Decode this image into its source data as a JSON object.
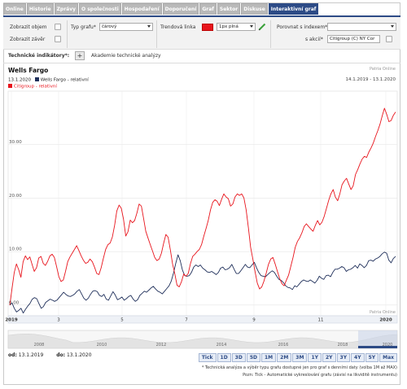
{
  "tabs": [
    {
      "label": "Online"
    },
    {
      "label": "Historie"
    },
    {
      "label": "Zprávy"
    },
    {
      "label": "O společnosti"
    },
    {
      "label": "Hospodaření"
    },
    {
      "label": "Doporučení"
    },
    {
      "label": "Graf"
    },
    {
      "label": "Sektor"
    },
    {
      "label": "Diskuse"
    },
    {
      "label": "Interaktivní graf"
    }
  ],
  "controls": {
    "show_volume": "Zobrazit objem",
    "show_close": "Zobrazit závěr",
    "chart_type_label": "Typ grafu*",
    "chart_type_value": "čárový",
    "trend_line_label": "Trendová linka",
    "trend_line_color": "#e8141c",
    "trend_line_width": "1px plná",
    "compare_index_label": "Porovnat s indexem*",
    "compare_index_value": "",
    "compare_stock_label": "s akcií*",
    "compare_stock_value": "Citigroup (C) NY Cor"
  },
  "indicators": {
    "label": "Technické indikátory*:",
    "plus": "+",
    "academy": "Akademie technické analýzy"
  },
  "chart_header": {
    "title": "Wells Fargo",
    "source": "Patria Online",
    "date_label": "13.1.2020",
    "range": "14.1.2019 - 13.1.2020"
  },
  "chart_data": {
    "type": "line",
    "title": "Wells Fargo",
    "y_ticks": [
      "30.00",
      "20.00",
      "10.00",
      "0.00"
    ],
    "ylim": [
      -2,
      40
    ],
    "x_ticks": [
      "2019",
      "3",
      "5",
      "7",
      "9",
      "11",
      "2020"
    ],
    "grid": true,
    "series": [
      {
        "name": "Wells Fargo - relativní",
        "color": "#1f2f5a",
        "values": [
          0.0,
          0.4,
          -0.6,
          -1.3,
          -1.0,
          -0.6,
          -1.5,
          -0.8,
          -0.2,
          0.3,
          1.1,
          1.4,
          1.2,
          0.3,
          -0.6,
          -0.3,
          0.5,
          0.8,
          1.1,
          0.9,
          0.7,
          0.9,
          1.4,
          1.9,
          2.4,
          2.0,
          1.7,
          1.6,
          1.8,
          2.1,
          2.6,
          2.9,
          2.1,
          1.3,
          0.9,
          1.3,
          2.0,
          2.6,
          2.7,
          2.5,
          1.8,
          1.6,
          2.0,
          1.1,
          0.9,
          1.7,
          2.5,
          1.9,
          1.0,
          1.2,
          1.5,
          0.9,
          1.2,
          1.6,
          1.8,
          1.1,
          0.7,
          1.0,
          1.8,
          2.2,
          2.6,
          2.4,
          2.8,
          3.2,
          3.5,
          3.0,
          2.6,
          2.4,
          2.1,
          2.6,
          3.1,
          3.6,
          4.5,
          6.0,
          7.8,
          9.4,
          8.3,
          6.5,
          5.5,
          5.4,
          5.5,
          6.1,
          7.1,
          7.5,
          7.2,
          7.5,
          6.9,
          6.6,
          6.2,
          6.1,
          6.3,
          6.0,
          5.7,
          6.1,
          6.9,
          7.1,
          6.6,
          6.7,
          7.0,
          7.6,
          6.7,
          5.9,
          5.9,
          6.4,
          7.0,
          7.6,
          7.1,
          7.0,
          7.5,
          8.0,
          7.0,
          6.1,
          5.5,
          5.4,
          5.3,
          5.7,
          6.1,
          6.4,
          6.1,
          5.4,
          4.8,
          4.6,
          4.2,
          3.6,
          3.3,
          3.2,
          2.9,
          3.6,
          3.4,
          3.9,
          4.4,
          4.7,
          4.5,
          4.4,
          4.7,
          4.4,
          4.1,
          4.6,
          5.4,
          5.0,
          4.8,
          5.5,
          5.6,
          5.3,
          6.1,
          6.7,
          6.7,
          6.9,
          7.2,
          7.0,
          6.3,
          6.6,
          6.7,
          7.0,
          7.4,
          6.9,
          7.7,
          7.4,
          7.0,
          7.4,
          8.3,
          8.4,
          8.2,
          8.6,
          8.8,
          9.1,
          9.6,
          9.9,
          9.7,
          8.4,
          7.9,
          8.7,
          9.1
        ]
      },
      {
        "name": "Citigroup - relativní",
        "color": "#e8141c",
        "values": [
          0.0,
          3.0,
          6.1,
          7.7,
          6.6,
          5.2,
          8.1,
          9.2,
          8.5,
          9.0,
          7.6,
          6.3,
          7.0,
          8.8,
          9.1,
          7.8,
          7.4,
          8.2,
          9.2,
          9.5,
          8.9,
          7.2,
          5.3,
          4.4,
          4.7,
          6.3,
          8.1,
          9.0,
          9.7,
          10.4,
          11.1,
          10.2,
          9.2,
          8.4,
          7.8,
          8.0,
          8.6,
          8.1,
          7.1,
          5.9,
          5.7,
          7.0,
          8.8,
          10.4,
          11.3,
          11.6,
          12.7,
          14.9,
          17.6,
          18.7,
          18.1,
          16.1,
          12.9,
          13.7,
          15.9,
          15.4,
          15.8,
          17.2,
          18.9,
          18.5,
          16.2,
          13.8,
          12.5,
          11.3,
          10.1,
          8.9,
          8.3,
          8.6,
          9.7,
          11.6,
          13.2,
          12.7,
          10.3,
          7.7,
          5.8,
          3.7,
          3.4,
          4.4,
          5.8,
          5.4,
          5.9,
          7.7,
          9.1,
          9.5,
          10.0,
          10.4,
          11.3,
          12.9,
          14.3,
          15.8,
          17.8,
          19.2,
          19.7,
          19.4,
          18.6,
          19.8,
          20.8,
          20.2,
          19.9,
          18.5,
          18.9,
          20.2,
          20.8,
          20.5,
          20.8,
          20.0,
          17.8,
          14.4,
          10.8,
          8.6,
          6.2,
          4.1,
          3.0,
          3.4,
          4.5,
          6.0,
          7.6,
          8.6,
          8.9,
          7.7,
          6.3,
          5.0,
          4.0,
          3.6,
          4.6,
          5.6,
          7.2,
          8.9,
          10.8,
          11.9,
          12.6,
          13.5,
          14.7,
          15.2,
          14.7,
          14.2,
          13.8,
          14.9,
          15.8,
          15.0,
          15.5,
          16.6,
          18.1,
          19.6,
          20.8,
          21.6,
          20.2,
          19.5,
          20.8,
          22.5,
          23.2,
          23.7,
          22.6,
          21.6,
          22.3,
          24.4,
          25.3,
          26.4,
          27.3,
          27.8,
          27.6,
          28.6,
          29.4,
          30.3,
          31.5,
          32.6,
          33.8,
          35.4,
          36.8,
          35.7,
          34.3,
          34.5,
          35.5,
          36.1
        ]
      }
    ]
  },
  "navigator": {
    "years": [
      "2008",
      "2010",
      "2012",
      "2014",
      "2016",
      "2018",
      "2020"
    ]
  },
  "range_inputs": {
    "from_label": "od:",
    "from_value": "13.1.2019",
    "to_label": "do:",
    "to_value": "13.1.2020"
  },
  "zoom_buttons": [
    {
      "label": "Tick"
    },
    {
      "label": "1D"
    },
    {
      "label": "3D"
    },
    {
      "label": "5D"
    },
    {
      "label": "1M"
    },
    {
      "label": "2M"
    },
    {
      "label": "3M"
    },
    {
      "label": "1Y"
    },
    {
      "label": "2Y"
    },
    {
      "label": "3Y"
    },
    {
      "label": "4Y"
    },
    {
      "label": "5Y"
    },
    {
      "label": "Max"
    }
  ],
  "notes": {
    "line1": "* Technická analýza a výběr typu grafu dostupné jen pro graf s denními daty (volba 1M až MAX)",
    "line2": "Pozn: Tick - Automatické vykreslování grafu (závisí na likviditě instrumentu)"
  },
  "colors": {
    "accent": "#2d4b86",
    "wfc": "#1f2f5a",
    "citi": "#e8141c"
  }
}
